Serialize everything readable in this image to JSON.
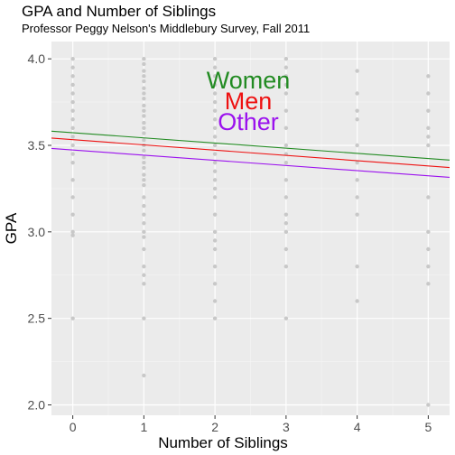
{
  "chart_data": {
    "type": "scatter",
    "title": "GPA and Number of Siblings",
    "subtitle": "Professor Peggy Nelson's Middlebury Survey, Fall 2011",
    "xlabel": "Number of Siblings",
    "ylabel": "GPA",
    "xlim": [
      -0.3,
      5.3
    ],
    "ylim": [
      1.94,
      4.1
    ],
    "x_ticks": [
      0,
      1,
      2,
      3,
      4,
      5
    ],
    "y_ticks": [
      2.0,
      2.5,
      3.0,
      3.5,
      4.0
    ],
    "y_tick_labels": [
      "2.0",
      "2.5",
      "3.0",
      "3.5",
      "4.0"
    ],
    "grid": true,
    "point_color": "#c8c8c8",
    "points": [
      {
        "x": 0,
        "y": 4.0
      },
      {
        "x": 0,
        "y": 3.95
      },
      {
        "x": 0,
        "y": 3.9
      },
      {
        "x": 0,
        "y": 3.85
      },
      {
        "x": 0,
        "y": 3.8
      },
      {
        "x": 0,
        "y": 3.75
      },
      {
        "x": 0,
        "y": 3.7
      },
      {
        "x": 0,
        "y": 3.65
      },
      {
        "x": 0,
        "y": 3.6
      },
      {
        "x": 0,
        "y": 3.55
      },
      {
        "x": 0,
        "y": 3.5
      },
      {
        "x": 0,
        "y": 3.45
      },
      {
        "x": 0,
        "y": 3.4
      },
      {
        "x": 0,
        "y": 3.3
      },
      {
        "x": 0,
        "y": 3.2
      },
      {
        "x": 0,
        "y": 3.1
      },
      {
        "x": 0,
        "y": 3.0
      },
      {
        "x": 0,
        "y": 2.98
      },
      {
        "x": 0,
        "y": 2.5
      },
      {
        "x": 1,
        "y": 4.0
      },
      {
        "x": 1,
        "y": 3.97
      },
      {
        "x": 1,
        "y": 3.93
      },
      {
        "x": 1,
        "y": 3.9
      },
      {
        "x": 1,
        "y": 3.87
      },
      {
        "x": 1,
        "y": 3.83
      },
      {
        "x": 1,
        "y": 3.8
      },
      {
        "x": 1,
        "y": 3.77
      },
      {
        "x": 1,
        "y": 3.73
      },
      {
        "x": 1,
        "y": 3.7
      },
      {
        "x": 1,
        "y": 3.67
      },
      {
        "x": 1,
        "y": 3.63
      },
      {
        "x": 1,
        "y": 3.6
      },
      {
        "x": 1,
        "y": 3.57
      },
      {
        "x": 1,
        "y": 3.53
      },
      {
        "x": 1,
        "y": 3.5
      },
      {
        "x": 1,
        "y": 3.47
      },
      {
        "x": 1,
        "y": 3.43
      },
      {
        "x": 1,
        "y": 3.4
      },
      {
        "x": 1,
        "y": 3.37
      },
      {
        "x": 1,
        "y": 3.33
      },
      {
        "x": 1,
        "y": 3.3
      },
      {
        "x": 1,
        "y": 3.27
      },
      {
        "x": 1,
        "y": 3.2
      },
      {
        "x": 1,
        "y": 3.15
      },
      {
        "x": 1,
        "y": 3.1
      },
      {
        "x": 1,
        "y": 3.05
      },
      {
        "x": 1,
        "y": 3.0
      },
      {
        "x": 1,
        "y": 2.97
      },
      {
        "x": 1,
        "y": 2.9
      },
      {
        "x": 1,
        "y": 2.8
      },
      {
        "x": 1,
        "y": 2.75
      },
      {
        "x": 1,
        "y": 2.7
      },
      {
        "x": 1,
        "y": 2.5
      },
      {
        "x": 1,
        "y": 2.17
      },
      {
        "x": 2,
        "y": 4.0
      },
      {
        "x": 2,
        "y": 3.95
      },
      {
        "x": 2,
        "y": 3.9
      },
      {
        "x": 2,
        "y": 3.85
      },
      {
        "x": 2,
        "y": 3.8
      },
      {
        "x": 2,
        "y": 3.75
      },
      {
        "x": 2,
        "y": 3.7
      },
      {
        "x": 2,
        "y": 3.65
      },
      {
        "x": 2,
        "y": 3.6
      },
      {
        "x": 2,
        "y": 3.55
      },
      {
        "x": 2,
        "y": 3.5
      },
      {
        "x": 2,
        "y": 3.45
      },
      {
        "x": 2,
        "y": 3.4
      },
      {
        "x": 2,
        "y": 3.35
      },
      {
        "x": 2,
        "y": 3.3
      },
      {
        "x": 2,
        "y": 3.25
      },
      {
        "x": 2,
        "y": 3.2
      },
      {
        "x": 2,
        "y": 3.1
      },
      {
        "x": 2,
        "y": 3.0
      },
      {
        "x": 2,
        "y": 2.95
      },
      {
        "x": 2,
        "y": 2.9
      },
      {
        "x": 2,
        "y": 2.8
      },
      {
        "x": 2,
        "y": 2.7
      },
      {
        "x": 2,
        "y": 2.6
      },
      {
        "x": 2,
        "y": 2.5
      },
      {
        "x": 3,
        "y": 4.0
      },
      {
        "x": 3,
        "y": 3.95
      },
      {
        "x": 3,
        "y": 3.9
      },
      {
        "x": 3,
        "y": 3.85
      },
      {
        "x": 3,
        "y": 3.8
      },
      {
        "x": 3,
        "y": 3.7
      },
      {
        "x": 3,
        "y": 3.6
      },
      {
        "x": 3,
        "y": 3.5
      },
      {
        "x": 3,
        "y": 3.45
      },
      {
        "x": 3,
        "y": 3.4
      },
      {
        "x": 3,
        "y": 3.3
      },
      {
        "x": 3,
        "y": 3.2
      },
      {
        "x": 3,
        "y": 3.1
      },
      {
        "x": 3,
        "y": 3.05
      },
      {
        "x": 3,
        "y": 3.0
      },
      {
        "x": 3,
        "y": 2.9
      },
      {
        "x": 3,
        "y": 2.8
      },
      {
        "x": 3,
        "y": 2.5
      },
      {
        "x": 4,
        "y": 3.93
      },
      {
        "x": 4,
        "y": 3.8
      },
      {
        "x": 4,
        "y": 3.7
      },
      {
        "x": 4,
        "y": 3.65
      },
      {
        "x": 4,
        "y": 3.5
      },
      {
        "x": 4,
        "y": 3.4
      },
      {
        "x": 4,
        "y": 3.3
      },
      {
        "x": 4,
        "y": 3.2
      },
      {
        "x": 4,
        "y": 3.1
      },
      {
        "x": 4,
        "y": 2.8
      },
      {
        "x": 4,
        "y": 2.6
      },
      {
        "x": 5,
        "y": 3.9
      },
      {
        "x": 5,
        "y": 3.8
      },
      {
        "x": 5,
        "y": 3.7
      },
      {
        "x": 5,
        "y": 3.6
      },
      {
        "x": 5,
        "y": 3.55
      },
      {
        "x": 5,
        "y": 3.5
      },
      {
        "x": 5,
        "y": 3.2
      },
      {
        "x": 5,
        "y": 3.0
      },
      {
        "x": 5,
        "y": 2.9
      },
      {
        "x": 5,
        "y": 2.8
      },
      {
        "x": 5,
        "y": 2.7
      },
      {
        "x": 5,
        "y": 2.0
      }
    ],
    "series": [
      {
        "name": "Women",
        "color": "#228b22",
        "x": [
          -0.3,
          5.3
        ],
        "values": [
          3.582,
          3.415
        ]
      },
      {
        "name": "Men",
        "color": "#ee1111",
        "x": [
          -0.3,
          5.3
        ],
        "values": [
          3.542,
          3.372
        ]
      },
      {
        "name": "Other",
        "color": "#9b11ee",
        "x": [
          -0.3,
          5.3
        ],
        "values": [
          3.482,
          3.315
        ]
      }
    ]
  }
}
